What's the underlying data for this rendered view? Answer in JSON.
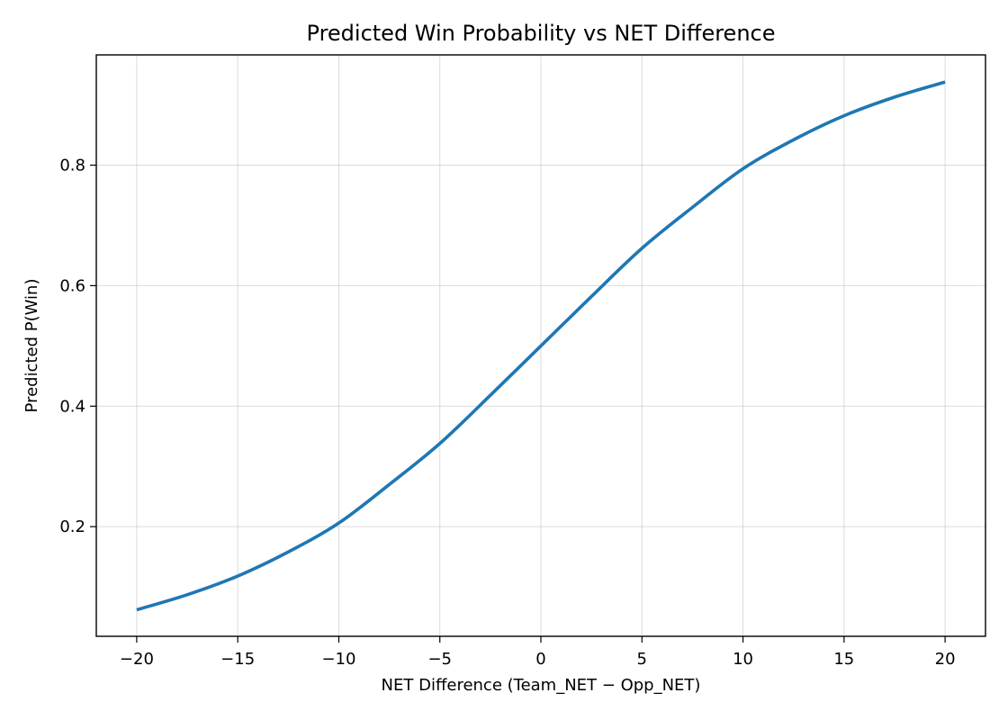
{
  "chart_data": {
    "type": "line",
    "title": "Predicted Win Probability vs NET Difference",
    "xlabel": "NET Difference (Team_NET − Opp_NET)",
    "ylabel": "Predicted P(Win)",
    "xlim": [
      -22,
      22
    ],
    "ylim": [
      0.018,
      0.983
    ],
    "xticks": [
      -20,
      -15,
      -10,
      -5,
      0,
      5,
      10,
      15,
      20
    ],
    "xtick_labels": [
      "−20",
      "−15",
      "−10",
      "−5",
      "0",
      "5",
      "10",
      "15",
      "20"
    ],
    "yticks": [
      0.2,
      0.4,
      0.6,
      0.8
    ],
    "ytick_labels": [
      "0.2",
      "0.4",
      "0.6",
      "0.8"
    ],
    "grid": true,
    "series": [
      {
        "color": "#1f77b4",
        "x": [
          -20,
          -17.5,
          -15,
          -12.5,
          -10,
          -7.5,
          -5,
          -2.5,
          0,
          2.5,
          5,
          7.5,
          10,
          12.5,
          15,
          17.5,
          20
        ],
        "y": [
          0.062,
          0.087,
          0.118,
          0.158,
          0.206,
          0.27,
          0.338,
          0.418,
          0.5,
          0.582,
          0.662,
          0.73,
          0.794,
          0.842,
          0.882,
          0.913,
          0.938
        ]
      }
    ]
  }
}
